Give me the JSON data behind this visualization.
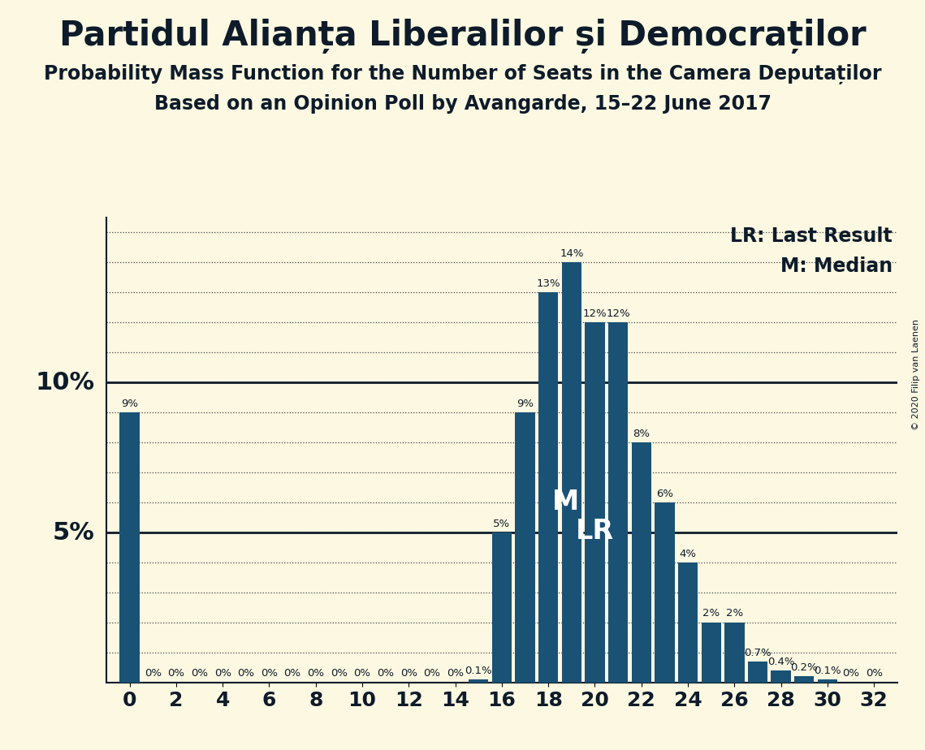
{
  "title": "Partidul Alianța Liberalilor și Democraților",
  "subtitle1": "Probability Mass Function for the Number of Seats in the Camera Deputaților",
  "subtitle2": "Based on an Opinion Poll by Avangarde, 15–22 June 2017",
  "copyright": "© 2020 Filip van Laenen",
  "seats": [
    0,
    1,
    2,
    3,
    4,
    5,
    6,
    7,
    8,
    9,
    10,
    11,
    12,
    13,
    14,
    15,
    16,
    17,
    18,
    19,
    20,
    21,
    22,
    23,
    24,
    25,
    26,
    27,
    28,
    29,
    30,
    31,
    32
  ],
  "probabilities": [
    9.0,
    0.0,
    0.0,
    0.0,
    0.0,
    0.0,
    0.0,
    0.0,
    0.0,
    0.0,
    0.0,
    0.0,
    0.0,
    0.0,
    0.0,
    0.1,
    5.0,
    9.0,
    13.0,
    14.0,
    12.0,
    12.0,
    8.0,
    6.0,
    4.0,
    2.0,
    2.0,
    0.7,
    0.4,
    0.2,
    0.1,
    0.0,
    0.0
  ],
  "bar_color": "#1a5276",
  "background_color": "#fdf8e1",
  "median_seat": 19,
  "last_result_seat": 20,
  "legend_lr": "LR: Last Result",
  "legend_m": "M: Median",
  "title_fontsize": 30,
  "subtitle_fontsize": 17,
  "bar_label_fontsize": 9.5,
  "marker_fontsize": 24,
  "legend_fontsize": 17,
  "ylim": [
    0,
    15.5
  ],
  "text_color": "#0d1b2a"
}
